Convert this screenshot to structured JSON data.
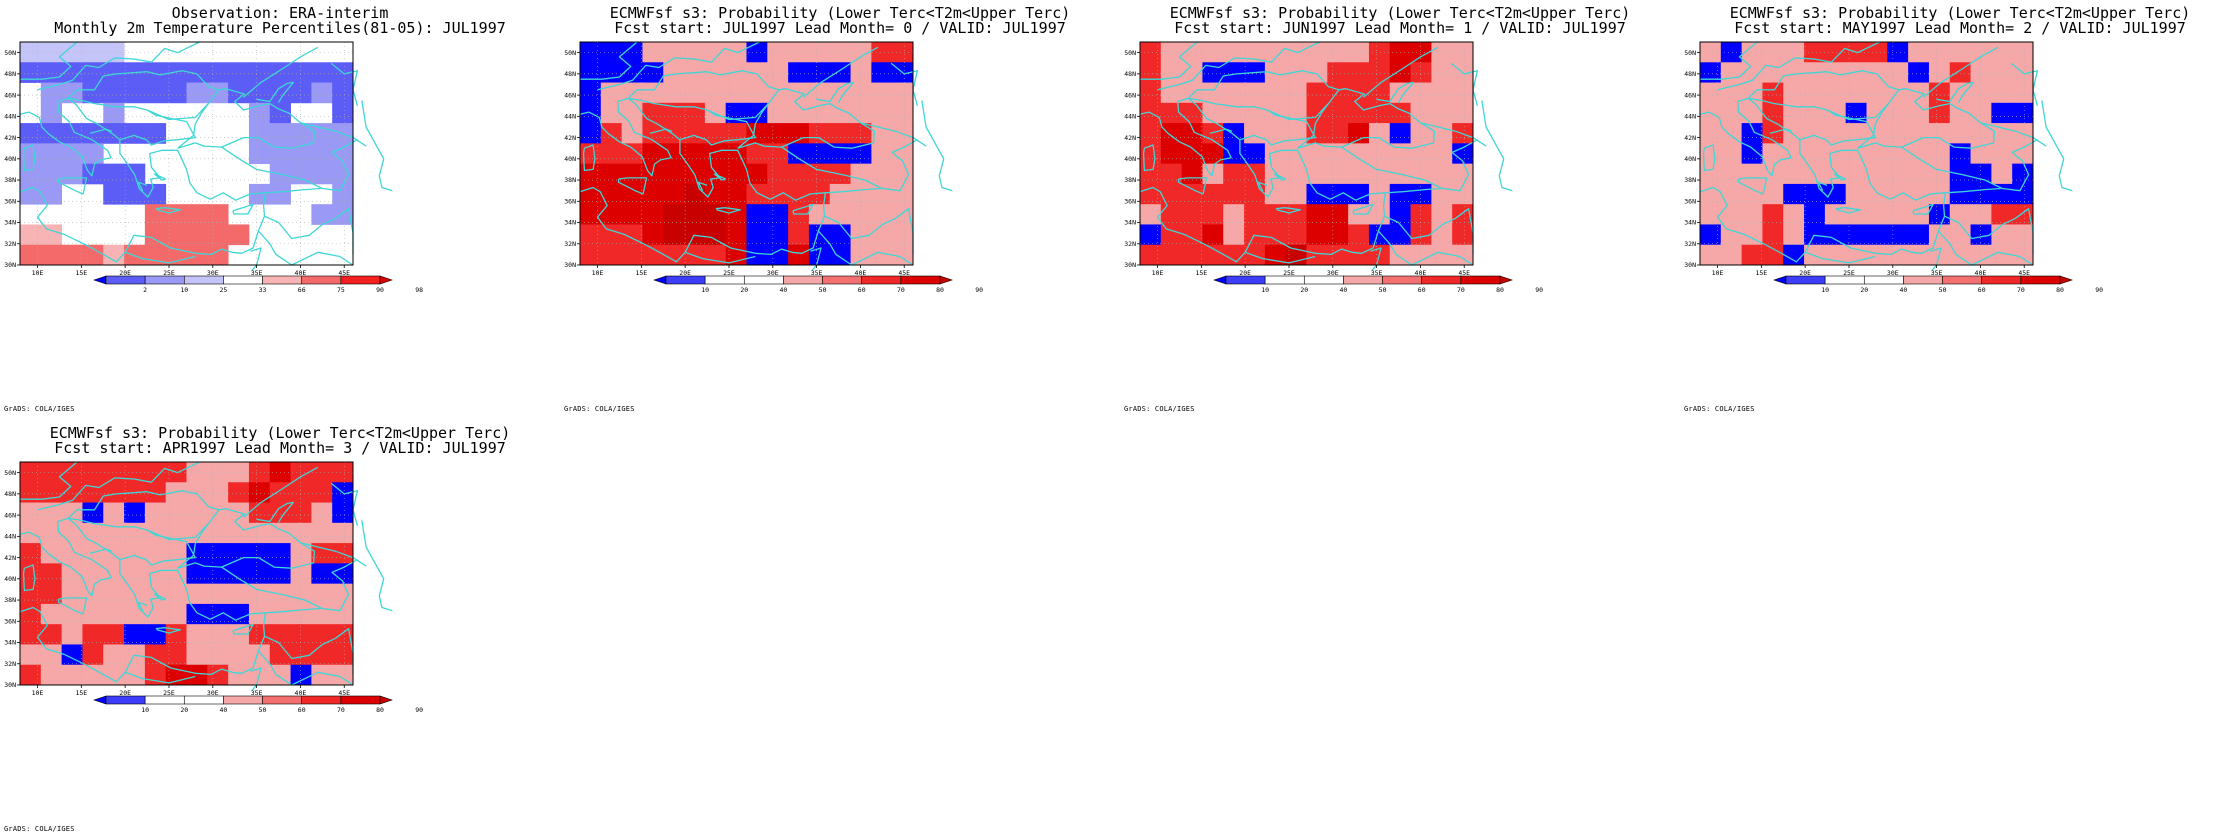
{
  "page": {
    "background": "#ffffff",
    "coast_color": "#3fd6d6"
  },
  "map": {
    "lon_range": [
      8,
      46
    ],
    "lat_range": [
      30,
      51
    ],
    "lon_ticks": [
      "10E",
      "15E",
      "20E",
      "25E",
      "30E",
      "35E",
      "40E",
      "45E"
    ],
    "lat_ticks": [
      "30N",
      "32N",
      "34N",
      "36N",
      "38N",
      "40N",
      "42N",
      "44N",
      "46N",
      "48N",
      "50N"
    ]
  },
  "panels": [
    {
      "title_line1": "Observation: ERA-interim",
      "title_line2": "Monthly 2m Temperature Percentiles(81-05): JUL1997",
      "credit": "GrADS: COLA/IGES",
      "colorbar": {
        "labels": [
          "2",
          "10",
          "25",
          "33",
          "66",
          "75",
          "90",
          "98"
        ],
        "colors": [
          "#0000ff",
          "#5c5cf6",
          "#9a9af6",
          "#c4c4f8",
          "#ffffff",
          "#f8b4b4",
          "#f46a6a",
          "#f62020",
          "#e00000"
        ]
      },
      "grid": [
        [
          3,
          3,
          3,
          3,
          3,
          4,
          4,
          4,
          4,
          4,
          4,
          4,
          4,
          4,
          4,
          4
        ],
        [
          1,
          1,
          1,
          1,
          1,
          1,
          1,
          1,
          1,
          1,
          1,
          1,
          1,
          1,
          1,
          1
        ],
        [
          4,
          2,
          2,
          1,
          1,
          1,
          1,
          1,
          2,
          2,
          1,
          1,
          1,
          1,
          2,
          1
        ],
        [
          4,
          2,
          4,
          4,
          2,
          4,
          4,
          4,
          4,
          4,
          4,
          2,
          1,
          4,
          4,
          1
        ],
        [
          1,
          1,
          1,
          1,
          1,
          1,
          1,
          4,
          4,
          4,
          4,
          2,
          2,
          2,
          2,
          2
        ],
        [
          2,
          2,
          2,
          2,
          4,
          4,
          4,
          4,
          4,
          4,
          4,
          2,
          2,
          2,
          2,
          2
        ],
        [
          2,
          2,
          2,
          1,
          1,
          1,
          4,
          4,
          4,
          4,
          4,
          4,
          2,
          2,
          2,
          2
        ],
        [
          2,
          2,
          4,
          4,
          1,
          1,
          1,
          4,
          4,
          4,
          4,
          2,
          2,
          4,
          4,
          2
        ],
        [
          4,
          4,
          4,
          4,
          4,
          4,
          6,
          6,
          6,
          6,
          4,
          4,
          4,
          4,
          2,
          2
        ],
        [
          5,
          5,
          4,
          4,
          4,
          4,
          6,
          6,
          6,
          6,
          6,
          4,
          4,
          4,
          4,
          4
        ],
        [
          6,
          6,
          6,
          6,
          5,
          6,
          6,
          6,
          6,
          6,
          4,
          4,
          4,
          4,
          4,
          4
        ]
      ]
    },
    {
      "title_line1": "ECMWFsf s3: Probability (Lower Terc<T2m<Upper Terc)",
      "title_line2": "Fcst start: JUL1997  Lead Month= 0 / VALID: JUL1997",
      "credit": "GrADS: COLA/IGES",
      "colorbar": {
        "labels": [
          "10",
          "20",
          "40",
          "50",
          "60",
          "70",
          "80",
          "90"
        ],
        "colors": [
          "#0000ff",
          "#3c3cfa",
          "#ffffff",
          "#ffffff",
          "#f6a8a8",
          "#f47070",
          "#f02828",
          "#dc0000",
          "#c80000"
        ]
      },
      "grid": [
        [
          0,
          0,
          0,
          4,
          4,
          4,
          4,
          4,
          0,
          4,
          4,
          4,
          4,
          4,
          6,
          6
        ],
        [
          0,
          0,
          0,
          0,
          4,
          4,
          4,
          4,
          4,
          4,
          0,
          0,
          0,
          4,
          0,
          0
        ],
        [
          0,
          4,
          4,
          4,
          4,
          4,
          4,
          4,
          4,
          4,
          4,
          4,
          4,
          4,
          4,
          4
        ],
        [
          0,
          4,
          4,
          6,
          6,
          6,
          4,
          0,
          0,
          4,
          4,
          4,
          4,
          4,
          4,
          4
        ],
        [
          0,
          6,
          4,
          6,
          6,
          6,
          6,
          6,
          7,
          7,
          7,
          6,
          6,
          6,
          4,
          4
        ],
        [
          6,
          6,
          6,
          7,
          7,
          7,
          7,
          7,
          6,
          6,
          0,
          0,
          0,
          0,
          4,
          4
        ],
        [
          7,
          7,
          7,
          7,
          7,
          7,
          7,
          7,
          7,
          6,
          6,
          6,
          6,
          4,
          4,
          4
        ],
        [
          7,
          7,
          7,
          7,
          7,
          8,
          7,
          7,
          6,
          6,
          6,
          6,
          4,
          4,
          4,
          4
        ],
        [
          7,
          7,
          7,
          7,
          8,
          8,
          8,
          7,
          0,
          0,
          6,
          4,
          4,
          4,
          4,
          4
        ],
        [
          6,
          6,
          6,
          7,
          8,
          8,
          8,
          7,
          0,
          0,
          6,
          0,
          0,
          4,
          4,
          4
        ],
        [
          6,
          6,
          6,
          6,
          6,
          6,
          6,
          7,
          0,
          0,
          7,
          0,
          0,
          4,
          4,
          4
        ]
      ]
    },
    {
      "title_line1": "ECMWFsf s3: Probability (Lower Terc<T2m<Upper Terc)",
      "title_line2": "Fcst start: JUN1997  Lead Month= 1 / VALID: JUL1997",
      "credit": "GrADS: COLA/IGES",
      "colorbar": {
        "labels": [
          "10",
          "20",
          "40",
          "50",
          "60",
          "70",
          "80",
          "90"
        ],
        "colors": [
          "#0000ff",
          "#3c3cfa",
          "#ffffff",
          "#ffffff",
          "#f6a8a8",
          "#f47070",
          "#f02828",
          "#dc0000",
          "#c80000"
        ]
      },
      "grid": [
        [
          6,
          4,
          4,
          4,
          4,
          4,
          4,
          4,
          4,
          4,
          4,
          6,
          7,
          7,
          4,
          4
        ],
        [
          6,
          4,
          4,
          0,
          0,
          0,
          4,
          4,
          4,
          6,
          6,
          6,
          7,
          6,
          4,
          4
        ],
        [
          6,
          4,
          4,
          4,
          4,
          4,
          4,
          4,
          6,
          6,
          6,
          6,
          4,
          4,
          4,
          4
        ],
        [
          6,
          6,
          6,
          4,
          4,
          4,
          4,
          4,
          6,
          6,
          6,
          6,
          6,
          4,
          4,
          4
        ],
        [
          6,
          7,
          7,
          6,
          0,
          4,
          4,
          4,
          6,
          6,
          7,
          4,
          0,
          4,
          4,
          6
        ],
        [
          6,
          7,
          7,
          7,
          0,
          0,
          4,
          4,
          4,
          4,
          4,
          4,
          4,
          4,
          4,
          0
        ],
        [
          6,
          6,
          7,
          4,
          6,
          6,
          4,
          4,
          4,
          4,
          4,
          4,
          4,
          4,
          4,
          4
        ],
        [
          6,
          6,
          6,
          6,
          6,
          6,
          4,
          4,
          0,
          0,
          0,
          4,
          0,
          0,
          4,
          4
        ],
        [
          4,
          6,
          6,
          6,
          4,
          6,
          6,
          6,
          7,
          7,
          4,
          4,
          0,
          6,
          4,
          6
        ],
        [
          0,
          6,
          6,
          7,
          4,
          6,
          6,
          6,
          7,
          7,
          6,
          0,
          0,
          6,
          4,
          6
        ],
        [
          6,
          6,
          6,
          6,
          6,
          6,
          7,
          8,
          6,
          6,
          6,
          6,
          4,
          4,
          4,
          4
        ]
      ]
    },
    {
      "title_line1": "ECMWFsf s3: Probability (Lower Terc<T2m<Upper Terc)",
      "title_line2": "Fcst start: MAY1997  Lead Month= 2 / VALID: JUL1997",
      "credit": "GrADS: COLA/IGES",
      "colorbar": {
        "labels": [
          "10",
          "20",
          "40",
          "50",
          "60",
          "70",
          "80",
          "90"
        ],
        "colors": [
          "#0000ff",
          "#3c3cfa",
          "#ffffff",
          "#ffffff",
          "#f6a8a8",
          "#f47070",
          "#f02828",
          "#dc0000",
          "#c80000"
        ]
      },
      "grid": [
        [
          4,
          0,
          4,
          4,
          4,
          6,
          6,
          6,
          6,
          0,
          4,
          4,
          4,
          4,
          4,
          4
        ],
        [
          0,
          4,
          4,
          4,
          4,
          4,
          4,
          4,
          4,
          4,
          0,
          4,
          6,
          4,
          4,
          4
        ],
        [
          4,
          4,
          4,
          6,
          4,
          4,
          4,
          4,
          4,
          4,
          4,
          6,
          4,
          4,
          4,
          4
        ],
        [
          4,
          4,
          4,
          6,
          4,
          4,
          4,
          0,
          4,
          4,
          4,
          6,
          4,
          4,
          0,
          0
        ],
        [
          4,
          4,
          0,
          6,
          4,
          4,
          4,
          4,
          4,
          4,
          4,
          4,
          4,
          4,
          4,
          4
        ],
        [
          4,
          4,
          0,
          4,
          4,
          4,
          4,
          4,
          4,
          4,
          4,
          4,
          0,
          4,
          4,
          4
        ],
        [
          4,
          4,
          4,
          4,
          4,
          4,
          4,
          4,
          4,
          4,
          4,
          4,
          0,
          0,
          4,
          0
        ],
        [
          4,
          4,
          4,
          4,
          0,
          0,
          0,
          4,
          4,
          4,
          4,
          4,
          0,
          0,
          0,
          0
        ],
        [
          4,
          4,
          4,
          6,
          4,
          0,
          4,
          4,
          4,
          4,
          4,
          0,
          4,
          4,
          6,
          6
        ],
        [
          0,
          4,
          4,
          6,
          4,
          0,
          0,
          0,
          0,
          0,
          0,
          4,
          4,
          0,
          4,
          4
        ],
        [
          4,
          4,
          6,
          6,
          0,
          4,
          4,
          4,
          4,
          4,
          4,
          4,
          4,
          4,
          4,
          4
        ]
      ]
    },
    {
      "title_line1": "ECMWFsf s3: Probability (Lower Terc<T2m<Upper Terc)",
      "title_line2": "Fcst start: APR1997  Lead Month= 3 / VALID: JUL1997",
      "credit": "GrADS: COLA/IGES",
      "colorbar": {
        "labels": [
          "10",
          "20",
          "40",
          "50",
          "60",
          "70",
          "80",
          "90"
        ],
        "colors": [
          "#0000ff",
          "#3c3cfa",
          "#ffffff",
          "#ffffff",
          "#f6a8a8",
          "#f47070",
          "#f02828",
          "#dc0000",
          "#c80000"
        ]
      },
      "grid": [
        [
          6,
          6,
          6,
          6,
          6,
          6,
          6,
          6,
          4,
          4,
          4,
          6,
          7,
          6,
          6,
          6
        ],
        [
          6,
          6,
          6,
          6,
          6,
          6,
          6,
          4,
          4,
          4,
          6,
          7,
          6,
          6,
          6,
          0
        ],
        [
          4,
          4,
          4,
          0,
          4,
          0,
          4,
          4,
          4,
          4,
          4,
          6,
          6,
          6,
          4,
          0
        ],
        [
          4,
          4,
          4,
          4,
          4,
          4,
          4,
          4,
          4,
          4,
          4,
          4,
          4,
          4,
          4,
          4
        ],
        [
          6,
          4,
          4,
          4,
          4,
          4,
          4,
          4,
          0,
          0,
          0,
          0,
          0,
          4,
          6,
          6
        ],
        [
          6,
          6,
          4,
          4,
          4,
          4,
          4,
          4,
          0,
          0,
          0,
          0,
          0,
          4,
          0,
          0
        ],
        [
          6,
          6,
          4,
          4,
          4,
          4,
          4,
          4,
          4,
          4,
          4,
          4,
          4,
          4,
          4,
          4
        ],
        [
          6,
          4,
          4,
          4,
          4,
          4,
          4,
          4,
          0,
          0,
          0,
          4,
          4,
          4,
          4,
          4
        ],
        [
          6,
          6,
          4,
          6,
          6,
          0,
          0,
          6,
          4,
          4,
          4,
          6,
          6,
          6,
          6,
          6
        ],
        [
          4,
          4,
          0,
          6,
          4,
          4,
          6,
          6,
          4,
          4,
          4,
          4,
          6,
          6,
          6,
          6
        ],
        [
          6,
          4,
          4,
          4,
          4,
          4,
          6,
          7,
          7,
          6,
          4,
          4,
          4,
          0,
          4,
          4
        ]
      ]
    }
  ]
}
